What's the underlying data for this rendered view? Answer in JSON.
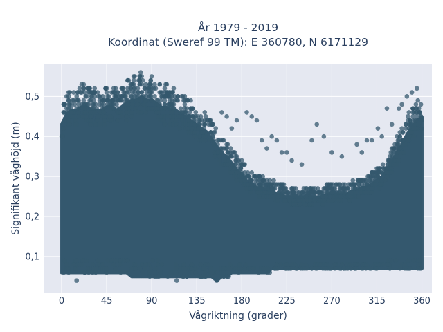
{
  "chart_data": {
    "type": "scatter",
    "title": "År 1979 - 2019",
    "subtitle": "Koordinat (Sweref 99 TM): E 360780, N 6171129",
    "xlabel": "Vågriktning (grader)",
    "ylabel": "Signifikant våghöjd (m)",
    "xlim": [
      -18,
      370
    ],
    "ylim": [
      0.01,
      0.58
    ],
    "x_ticks": [
      0,
      45,
      90,
      135,
      180,
      225,
      270,
      315,
      360
    ],
    "x_tick_labels": [
      "0",
      "45",
      "90",
      "135",
      "180",
      "225",
      "270",
      "315",
      "360"
    ],
    "y_ticks": [
      0.1,
      0.2,
      0.3,
      0.4,
      0.5
    ],
    "y_tick_labels": [
      "0,1",
      "0,2",
      "0,3",
      "0,4",
      "0,5"
    ],
    "grid": true,
    "legend": "none",
    "marker_color": "#34586e",
    "plot_bgcolor": "#e5e8f1",
    "series": [
      {
        "x": [
          0,
          5,
          10,
          15,
          20,
          25,
          30,
          35,
          40,
          45,
          50,
          55,
          60,
          65,
          70,
          75,
          80,
          85,
          90,
          95,
          100,
          105,
          110,
          115,
          120,
          125,
          130,
          135,
          140,
          145,
          150,
          155,
          160,
          165,
          170,
          175,
          180,
          185,
          190,
          195,
          200,
          205,
          210,
          215,
          220,
          225,
          230,
          235,
          240,
          245,
          250,
          255,
          260,
          265,
          270,
          275,
          280,
          285,
          290,
          295,
          300,
          305,
          310,
          315,
          320,
          325,
          330,
          335,
          340,
          345,
          350,
          355,
          360
        ],
        "y_min": [
          0.06,
          0.06,
          0.06,
          0.06,
          0.06,
          0.06,
          0.06,
          0.06,
          0.06,
          0.06,
          0.06,
          0.06,
          0.06,
          0.06,
          0.05,
          0.05,
          0.05,
          0.05,
          0.05,
          0.05,
          0.05,
          0.05,
          0.05,
          0.05,
          0.05,
          0.05,
          0.05,
          0.05,
          0.05,
          0.05,
          0.05,
          0.04,
          0.05,
          0.05,
          0.06,
          0.06,
          0.06,
          0.06,
          0.06,
          0.06,
          0.06,
          0.06,
          0.07,
          0.07,
          0.07,
          0.07,
          0.07,
          0.07,
          0.07,
          0.07,
          0.07,
          0.07,
          0.07,
          0.07,
          0.07,
          0.07,
          0.07,
          0.07,
          0.07,
          0.07,
          0.07,
          0.07,
          0.07,
          0.07,
          0.07,
          0.07,
          0.07,
          0.07,
          0.07,
          0.07,
          0.07,
          0.07,
          0.07
        ],
        "y_max": [
          0.48,
          0.51,
          0.52,
          0.52,
          0.53,
          0.53,
          0.52,
          0.52,
          0.52,
          0.53,
          0.53,
          0.52,
          0.53,
          0.54,
          0.55,
          0.55,
          0.56,
          0.55,
          0.55,
          0.54,
          0.53,
          0.53,
          0.52,
          0.52,
          0.51,
          0.5,
          0.49,
          0.48,
          0.47,
          0.46,
          0.44,
          0.42,
          0.4,
          0.39,
          0.37,
          0.35,
          0.34,
          0.32,
          0.31,
          0.3,
          0.3,
          0.29,
          0.29,
          0.28,
          0.28,
          0.27,
          0.27,
          0.27,
          0.27,
          0.27,
          0.27,
          0.27,
          0.27,
          0.28,
          0.28,
          0.28,
          0.28,
          0.28,
          0.29,
          0.29,
          0.3,
          0.3,
          0.31,
          0.32,
          0.33,
          0.35,
          0.37,
          0.4,
          0.42,
          0.45,
          0.47,
          0.49,
          0.5
        ]
      }
    ],
    "outliers": [
      {
        "x": 160,
        "y": 0.46
      },
      {
        "x": 165,
        "y": 0.45
      },
      {
        "x": 170,
        "y": 0.42
      },
      {
        "x": 175,
        "y": 0.44
      },
      {
        "x": 185,
        "y": 0.46
      },
      {
        "x": 190,
        "y": 0.45
      },
      {
        "x": 195,
        "y": 0.44
      },
      {
        "x": 200,
        "y": 0.39
      },
      {
        "x": 205,
        "y": 0.37
      },
      {
        "x": 210,
        "y": 0.4
      },
      {
        "x": 215,
        "y": 0.39
      },
      {
        "x": 220,
        "y": 0.36
      },
      {
        "x": 225,
        "y": 0.36
      },
      {
        "x": 230,
        "y": 0.34
      },
      {
        "x": 240,
        "y": 0.33
      },
      {
        "x": 250,
        "y": 0.39
      },
      {
        "x": 255,
        "y": 0.43
      },
      {
        "x": 262,
        "y": 0.4
      },
      {
        "x": 270,
        "y": 0.36
      },
      {
        "x": 280,
        "y": 0.35
      },
      {
        "x": 295,
        "y": 0.38
      },
      {
        "x": 300,
        "y": 0.36
      },
      {
        "x": 305,
        "y": 0.39
      },
      {
        "x": 310,
        "y": 0.39
      },
      {
        "x": 316,
        "y": 0.42
      },
      {
        "x": 320,
        "y": 0.4
      },
      {
        "x": 325,
        "y": 0.47
      },
      {
        "x": 330,
        "y": 0.43
      },
      {
        "x": 337,
        "y": 0.47
      },
      {
        "x": 340,
        "y": 0.48
      },
      {
        "x": 345,
        "y": 0.5
      },
      {
        "x": 350,
        "y": 0.51
      },
      {
        "x": 355,
        "y": 0.52
      },
      {
        "x": 115,
        "y": 0.04
      },
      {
        "x": 155,
        "y": 0.04
      },
      {
        "x": 15,
        "y": 0.04
      }
    ]
  }
}
